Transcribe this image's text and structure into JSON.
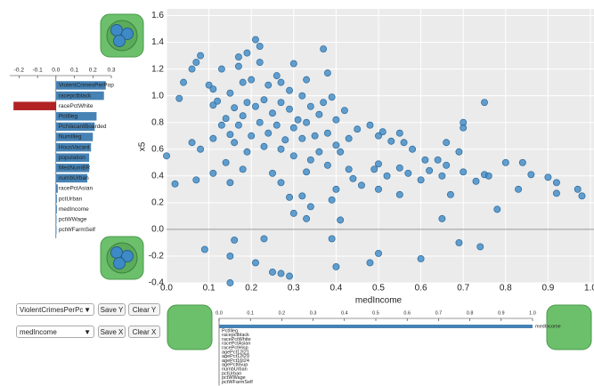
{
  "chart_data": [
    {
      "type": "scatter",
      "xlabel": "medIncome",
      "ylabel": "x5",
      "color": "#3d8ac6",
      "grid": true,
      "xlim": [
        0,
        1
      ],
      "ylim": [
        -0.4,
        1.65
      ],
      "xticks": [
        {
          "value": 0,
          "label": "0.0"
        },
        0.1,
        0.2,
        0.3,
        0.4,
        0.5,
        0.6,
        0.7,
        0.8,
        0.9,
        {
          "value": 1,
          "label": "1.0"
        }
      ],
      "yticks": [
        -0.4,
        -0.2,
        {
          "value": 0,
          "label": "0.0"
        },
        0.2,
        0.4,
        0.6,
        0.8,
        {
          "value": 1,
          "label": "1.0"
        },
        1.2,
        1.4,
        1.6
      ],
      "x": [
        0.21,
        0.22,
        0.19,
        0.37,
        0.13,
        0.07,
        0.08,
        0.06,
        0.17,
        0.17,
        0.22,
        0.3,
        0.26,
        0.2,
        0.04,
        0.1,
        0.11,
        0.03,
        0.11,
        0.15,
        0.18,
        0.24,
        0.27,
        0.29,
        0.33,
        0.32,
        0.38,
        0.34,
        0.37,
        0.39,
        0.27,
        0.29,
        0.23,
        0.21,
        0.25,
        0.19,
        0.16,
        0.14,
        0.12,
        0.18,
        0.31,
        0.33,
        0.36,
        0.4,
        0.42,
        0.3,
        0.26,
        0.22,
        0.17,
        0.15,
        0.13,
        0.11,
        0.06,
        0.16,
        0.2,
        0.24,
        0.28,
        0.32,
        0.35,
        0.38,
        0.4,
        0.43,
        0.45,
        0.48,
        0.5,
        0.51,
        0.53,
        0.55,
        0.56,
        0.58,
        0.61,
        0.64,
        0.66,
        0.69,
        0.7,
        0.7,
        0.75,
        0.36,
        0.34,
        0.3,
        0.27,
        0.23,
        0.19,
        0.14,
        0.08,
        0.0,
        0.02,
        0.11,
        0.18,
        0.25,
        0.27,
        0.33,
        0.38,
        0.41,
        0.43,
        0.44,
        0.46,
        0.49,
        0.5,
        0.52,
        0.55,
        0.57,
        0.6,
        0.62,
        0.65,
        0.66,
        0.7,
        0.73,
        0.75,
        0.76,
        0.8,
        0.84,
        0.86,
        0.9,
        0.92,
        0.92,
        0.97,
        0.98,
        0.83,
        0.78,
        0.67,
        0.5,
        0.4,
        0.39,
        0.32,
        0.29,
        0.3,
        0.33,
        0.34,
        0.41,
        0.55,
        0.65,
        0.07,
        0.15,
        0.09,
        0.15,
        0.16,
        0.21,
        0.25,
        0.27,
        0.29,
        0.23,
        0.4,
        0.48,
        0.5,
        0.39,
        0.6,
        0.69,
        0.74,
        0.15
      ],
      "values": [
        1.42,
        1.37,
        1.32,
        1.35,
        1.2,
        1.25,
        1.3,
        1.2,
        1.29,
        1.22,
        1.25,
        1.24,
        1.15,
        1.12,
        1.1,
        1.08,
        1.05,
        0.98,
        0.93,
        1.02,
        1.1,
        1.08,
        1.1,
        1.04,
        1.12,
        1.0,
        1.17,
        0.92,
        0.95,
        0.99,
        0.95,
        0.9,
        0.97,
        0.92,
        0.87,
        0.95,
        0.91,
        0.83,
        0.96,
        0.85,
        0.82,
        0.8,
        0.86,
        0.82,
        0.89,
        0.76,
        0.78,
        0.8,
        0.78,
        0.71,
        0.78,
        0.68,
        0.65,
        0.65,
        0.7,
        0.72,
        0.67,
        0.68,
        0.7,
        0.72,
        0.63,
        0.68,
        0.75,
        0.78,
        0.7,
        0.73,
        0.66,
        0.72,
        0.65,
        0.6,
        0.52,
        0.52,
        0.65,
        0.58,
        0.8,
        0.76,
        0.95,
        0.58,
        0.52,
        0.55,
        0.6,
        0.62,
        0.58,
        0.5,
        0.6,
        0.55,
        0.34,
        0.42,
        0.45,
        0.42,
        0.35,
        0.43,
        0.48,
        0.58,
        0.45,
        0.38,
        0.33,
        0.45,
        0.49,
        0.4,
        0.46,
        0.42,
        0.37,
        0.44,
        0.4,
        0.48,
        0.43,
        0.36,
        0.41,
        0.4,
        0.5,
        0.5,
        0.41,
        0.39,
        0.35,
        0.27,
        0.3,
        0.25,
        0.3,
        0.15,
        0.26,
        0.3,
        0.3,
        0.22,
        0.25,
        0.24,
        0.12,
        0.08,
        0.17,
        0.07,
        0.26,
        0.08,
        0.37,
        0.35,
        -0.15,
        -0.2,
        -0.08,
        -0.25,
        -0.32,
        -0.33,
        -0.35,
        -0.07,
        -0.28,
        -0.25,
        -0.18,
        -0.07,
        -0.22,
        -0.1,
        -0.13,
        -0.4
      ]
    },
    {
      "type": "hbar",
      "color": "#4682b4",
      "negative_color": "#b22222",
      "xlim": [
        -0.25,
        0.3
      ],
      "xticks": [
        -0.2,
        -0.1,
        {
          "value": 0,
          "label": "0.0"
        },
        0.1,
        0.2,
        0.3
      ],
      "categories": [
        "ViolentCrimesPerPop",
        "racepctblack",
        "racePctWhite",
        "PctIlleg",
        "PctVacantBoarded",
        "NumIlleg",
        "HousVacant",
        "population",
        "MedNumBR",
        "numbUrban",
        "racePctAsian",
        "pctUrban",
        "medIncome",
        "pctWWage",
        "pctWFarmSelf"
      ],
      "values": [
        0.27,
        0.26,
        -0.23,
        0.22,
        0.21,
        0.2,
        0.19,
        0.18,
        0.18,
        0.17,
        0.01,
        0.005,
        0.005,
        0.003,
        0.003
      ]
    },
    {
      "type": "hbar",
      "color": "#4682b4",
      "negative_color": "#b22222",
      "xlim": [
        0,
        1
      ],
      "xticks": [
        {
          "value": 0,
          "label": "0.0"
        },
        0.1,
        0.2,
        0.3,
        0.4,
        0.5,
        0.6,
        0.7,
        0.8,
        0.9,
        {
          "value": 1,
          "label": "1.0"
        }
      ],
      "categories": [
        "medIncome",
        "PctIlleg",
        "racepctblack",
        "racePctWhite",
        "racePctAsian",
        "racePctHisp",
        "agePct12t21",
        "agePct12t29",
        "agePct16t24",
        "agePct65up",
        "numbUrban",
        "pctUrban",
        "pctWWage",
        "pctWFarmSelf"
      ],
      "values": [
        1,
        0,
        0,
        0,
        0,
        0,
        0,
        0,
        0,
        0,
        0,
        0,
        0,
        0
      ]
    }
  ],
  "controls": {
    "y_select": "ViolentCrimesPerPc",
    "save_y": "Save Y",
    "clear_y": "Clear Y",
    "x_select": "medIncome",
    "save_x": "Save X",
    "clear_x": "Clear X"
  }
}
